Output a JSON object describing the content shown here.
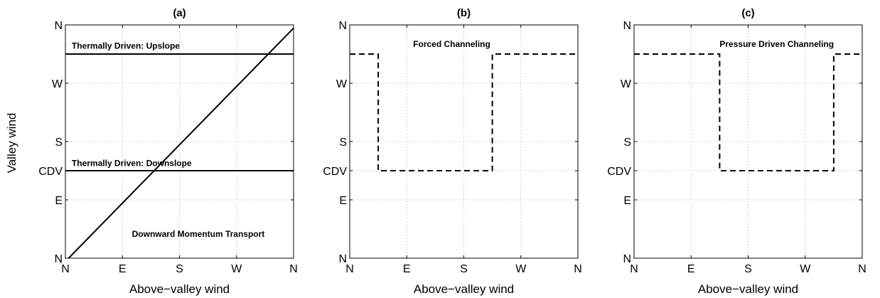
{
  "ylabel": "Valley wind",
  "axis_categories": {
    "x_ticks": [
      "N",
      "E",
      "S",
      "W",
      "N"
    ],
    "x_tick_values": [
      0,
      90,
      180,
      270,
      360
    ],
    "y_ticks": [
      "N",
      "E",
      "CDV",
      "S",
      "W",
      "N"
    ],
    "y_tick_values": [
      0,
      90,
      135,
      180,
      270,
      360
    ]
  },
  "chart_data": [
    {
      "type": "line",
      "title": "(a)",
      "xlabel": "Above−valley wind",
      "ylabel": "Valley wind",
      "xlim": [
        0,
        360
      ],
      "ylim": [
        0,
        360
      ],
      "grid": true,
      "series": [
        {
          "style": "solid",
          "x": [
            0,
            360
          ],
          "y": [
            315,
            315
          ]
        },
        {
          "style": "solid",
          "x": [
            0,
            360
          ],
          "y": [
            135,
            135
          ]
        },
        {
          "style": "solid",
          "x": [
            5,
            360
          ],
          "y": [
            0,
            355
          ]
        }
      ],
      "annotations": [
        {
          "text": "Thermally Driven: Upslope",
          "x": 10,
          "y": 323
        },
        {
          "text": "Thermally Driven: Downslope",
          "x": 10,
          "y": 142
        },
        {
          "text": "Downward Momentum Transport",
          "x": 105,
          "y": 33
        }
      ]
    },
    {
      "type": "line",
      "title": "(b)",
      "xlabel": "Above−valley wind",
      "xlim": [
        0,
        360
      ],
      "ylim": [
        0,
        360
      ],
      "grid": true,
      "series": [
        {
          "style": "dashed",
          "x": [
            0,
            45,
            45,
            225,
            225,
            360
          ],
          "y": [
            315,
            315,
            135,
            135,
            315,
            315
          ]
        }
      ],
      "annotations": [
        {
          "text": "Forced Channeling",
          "x": 100,
          "y": 326
        }
      ]
    },
    {
      "type": "line",
      "title": "(c)",
      "xlabel": "Above−valley wind",
      "xlim": [
        0,
        360
      ],
      "ylim": [
        0,
        360
      ],
      "grid": true,
      "series": [
        {
          "style": "dashed",
          "x": [
            0,
            135,
            135,
            315,
            315,
            360
          ],
          "y": [
            315,
            315,
            135,
            135,
            315,
            315
          ]
        }
      ],
      "annotations": [
        {
          "text": "Pressure Driven Channeling",
          "x": 135,
          "y": 326
        }
      ]
    }
  ]
}
